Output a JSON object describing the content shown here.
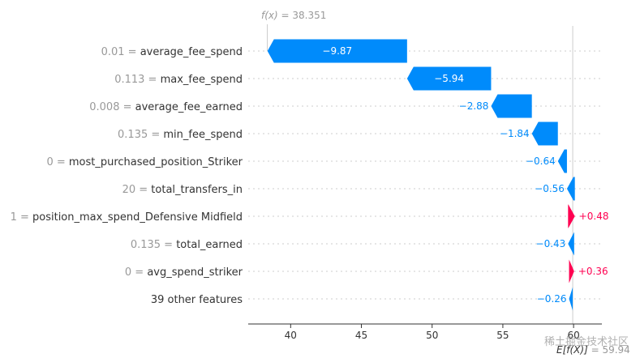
{
  "chart_data": {
    "type": "waterfall",
    "fx_label": "f(x)",
    "fx_value": "38.351",
    "ex_label": "E[f(X)]",
    "ex_value": "59.94",
    "base_value": 59.94,
    "final_value": 38.351,
    "xlim": [
      37.0,
      62.0
    ],
    "xticks": [
      40,
      45,
      50,
      55,
      60
    ],
    "features": [
      {
        "value_label": "0.01",
        "name": "average_fee_spend",
        "contribution": -9.87,
        "text": "−9.87"
      },
      {
        "value_label": "0.113",
        "name": "max_fee_spend",
        "contribution": -5.94,
        "text": "−5.94"
      },
      {
        "value_label": "0.008",
        "name": "average_fee_earned",
        "contribution": -2.88,
        "text": "−2.88"
      },
      {
        "value_label": "0.135",
        "name": "min_fee_spend",
        "contribution": -1.84,
        "text": "−1.84"
      },
      {
        "value_label": "0",
        "name": "most_purchased_position_Striker",
        "contribution": -0.64,
        "text": "−0.64"
      },
      {
        "value_label": "20",
        "name": "total_transfers_in",
        "contribution": -0.56,
        "text": "−0.56"
      },
      {
        "value_label": "1",
        "name": "position_max_spend_Defensive Midfield",
        "contribution": 0.48,
        "text": "+0.48"
      },
      {
        "value_label": "0.135",
        "name": "total_earned",
        "contribution": -0.43,
        "text": "−0.43"
      },
      {
        "value_label": "0",
        "name": "avg_spend_striker",
        "contribution": 0.36,
        "text": "+0.36"
      },
      {
        "value_label": "",
        "name": "39 other features",
        "contribution": -0.26,
        "text": "−0.26"
      }
    ]
  },
  "colors": {
    "negative": "#008bfb",
    "positive": "#ff0051",
    "axis": "#333333",
    "grid": "#cccccc",
    "muted": "#999999"
  },
  "watermark": "稀土掘金技术社区"
}
